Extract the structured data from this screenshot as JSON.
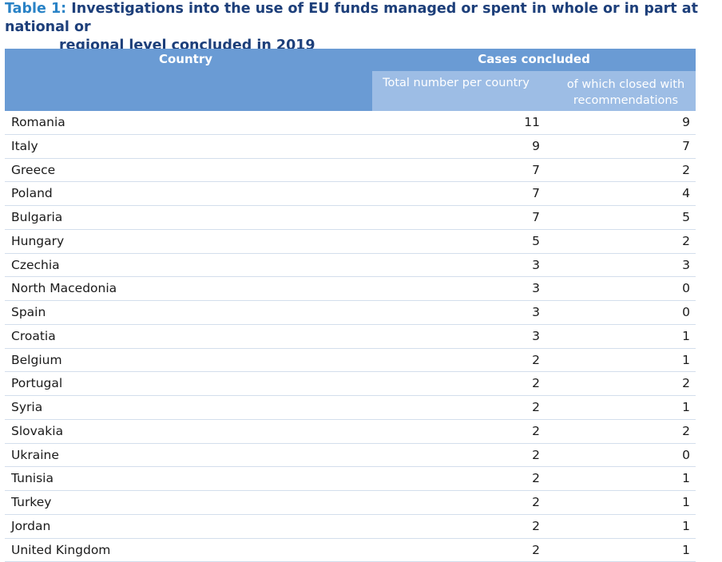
{
  "caption": {
    "prefix": "Table 1:",
    "line1": "Investigations into the use of EU funds managed or spent in whole or in part at national or",
    "line2": "regional level concluded in 2019"
  },
  "headers": {
    "country": "Country",
    "cases": "Cases concluded",
    "total": "Total number per country",
    "recommendations": "of which closed with recommendations"
  },
  "rows": [
    {
      "country": "Romania",
      "total": "11",
      "recs": "9"
    },
    {
      "country": "Italy",
      "total": "9",
      "recs": "7"
    },
    {
      "country": "Greece",
      "total": "7",
      "recs": "2"
    },
    {
      "country": "Poland",
      "total": "7",
      "recs": "4"
    },
    {
      "country": "Bulgaria",
      "total": "7",
      "recs": "5"
    },
    {
      "country": "Hungary",
      "total": "5",
      "recs": "2"
    },
    {
      "country": "Czechia",
      "total": "3",
      "recs": "3"
    },
    {
      "country": "North Macedonia",
      "total": "3",
      "recs": "0"
    },
    {
      "country": "Spain",
      "total": "3",
      "recs": "0"
    },
    {
      "country": "Croatia",
      "total": "3",
      "recs": "1"
    },
    {
      "country": "Belgium",
      "total": "2",
      "recs": "1"
    },
    {
      "country": "Portugal",
      "total": "2",
      "recs": "2"
    },
    {
      "country": "Syria",
      "total": "2",
      "recs": "1"
    },
    {
      "country": "Slovakia",
      "total": "2",
      "recs": "2"
    },
    {
      "country": "Ukraine",
      "total": "2",
      "recs": "0"
    },
    {
      "country": "Tunisia",
      "total": "2",
      "recs": "1"
    },
    {
      "country": "Turkey",
      "total": "2",
      "recs": "1"
    },
    {
      "country": "Jordan",
      "total": "2",
      "recs": "1"
    },
    {
      "country": "United Kingdom",
      "total": "2",
      "recs": "1"
    }
  ]
}
